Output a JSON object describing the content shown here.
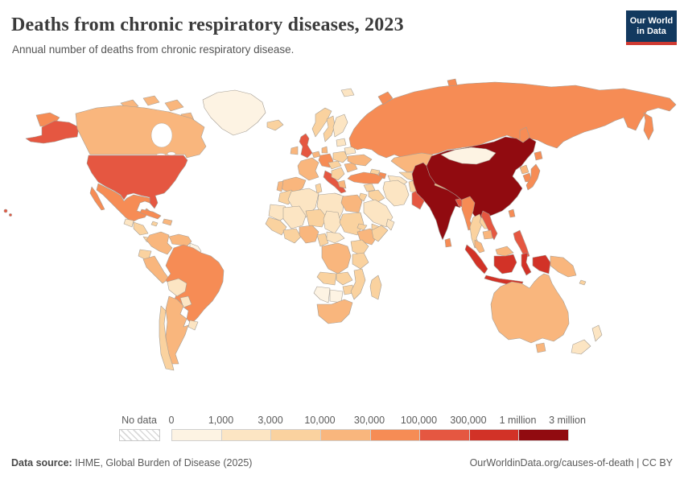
{
  "header": {
    "title": "Deaths from chronic respiratory diseases, 2023",
    "subtitle": "Annual number of deaths from chronic respiratory disease.",
    "logo_line1": "Our World",
    "logo_line2": "in Data"
  },
  "legend": {
    "no_data_label": "No data",
    "ticks": [
      "0",
      "1,000",
      "3,000",
      "10,000",
      "30,000",
      "100,000",
      "300,000",
      "1 million",
      "3 million"
    ]
  },
  "footer": {
    "source_label": "Data source:",
    "source_text": "IHME, Global Burden of Disease (2025)",
    "right_text": "OurWorldinData.org/causes-of-death | CC BY"
  },
  "chart_data": {
    "type": "choropleth_map",
    "title": "Deaths from chronic respiratory diseases, 2023",
    "unit": "deaths",
    "projection": "world",
    "legend_position": "bottom",
    "bin_edges": [
      "0",
      "1,000",
      "3,000",
      "10,000",
      "30,000",
      "100,000",
      "300,000",
      "1 million",
      "3 million"
    ],
    "colors": [
      "#fdf3e3",
      "#fce5c3",
      "#fad29f",
      "#f9b67d",
      "#f68c55",
      "#e55741",
      "#d23227",
      "#910b10"
    ],
    "no_data_fill": "hatched",
    "accent_colors": {
      "logo_navy": "#12395f",
      "logo_red": "#cf3a32",
      "border_gray": "#a59e95"
    },
    "regions": [
      {
        "name": "Greenland",
        "bin": 1
      },
      {
        "name": "Canada",
        "bin": 4
      },
      {
        "name": "United States",
        "bin": 6
      },
      {
        "name": "Mexico",
        "bin": 5
      },
      {
        "name": "Guatemala",
        "bin": 2
      },
      {
        "name": "Nicaragua",
        "bin": 3
      },
      {
        "name": "Panama",
        "bin": 3
      },
      {
        "name": "Cuba",
        "bin": 5
      },
      {
        "name": "Dominican Republic",
        "bin": 4
      },
      {
        "name": "Jamaica",
        "bin": 3
      },
      {
        "name": "Colombia",
        "bin": 4
      },
      {
        "name": "Venezuela",
        "bin": 4
      },
      {
        "name": "Guyana",
        "bin": 1
      },
      {
        "name": "Ecuador",
        "bin": 3
      },
      {
        "name": "Peru",
        "bin": 4
      },
      {
        "name": "Brazil",
        "bin": 5
      },
      {
        "name": "Bolivia",
        "bin": 2
      },
      {
        "name": "Paraguay",
        "bin": 2
      },
      {
        "name": "Uruguay",
        "bin": 2
      },
      {
        "name": "Argentina",
        "bin": 4
      },
      {
        "name": "Chile",
        "bin": 3
      },
      {
        "name": "Iceland",
        "bin": 3
      },
      {
        "name": "United Kingdom",
        "bin": 6
      },
      {
        "name": "Ireland",
        "bin": 4
      },
      {
        "name": "Norway",
        "bin": 3
      },
      {
        "name": "Sweden",
        "bin": 3
      },
      {
        "name": "Finland",
        "bin": 2
      },
      {
        "name": "Denmark",
        "bin": 4
      },
      {
        "name": "Germany",
        "bin": 5
      },
      {
        "name": "Netherlands",
        "bin": 4
      },
      {
        "name": "France",
        "bin": 4
      },
      {
        "name": "Spain",
        "bin": 4
      },
      {
        "name": "Portugal",
        "bin": 4
      },
      {
        "name": "Italy",
        "bin": 6
      },
      {
        "name": "Poland",
        "bin": 3
      },
      {
        "name": "Czechia",
        "bin": 3
      },
      {
        "name": "Serbia",
        "bin": 3
      },
      {
        "name": "Romania",
        "bin": 4
      },
      {
        "name": "Greece",
        "bin": 4
      },
      {
        "name": "Ukraine",
        "bin": 4
      },
      {
        "name": "Belarus",
        "bin": 2
      },
      {
        "name": "Lithuania",
        "bin": 2
      },
      {
        "name": "Russia",
        "bin": 5
      },
      {
        "name": "Kazakhstan",
        "bin": 4
      },
      {
        "name": "Uzbekistan",
        "bin": 3
      },
      {
        "name": "Turkmenistan",
        "bin": 2
      },
      {
        "name": "Georgia",
        "bin": 3
      },
      {
        "name": "Azerbaijan",
        "bin": 5
      },
      {
        "name": "Turkey",
        "bin": 5
      },
      {
        "name": "Syria",
        "bin": 3
      },
      {
        "name": "Iraq",
        "bin": 3
      },
      {
        "name": "Iran",
        "bin": 2
      },
      {
        "name": "Saudi Arabia",
        "bin": 2
      },
      {
        "name": "Yemen",
        "bin": 3
      },
      {
        "name": "Oman",
        "bin": 2
      },
      {
        "name": "Jordan",
        "bin": 3
      },
      {
        "name": "Afghanistan",
        "bin": 3
      },
      {
        "name": "Pakistan",
        "bin": 6
      },
      {
        "name": "India",
        "bin": 8
      },
      {
        "name": "Nepal",
        "bin": 4
      },
      {
        "name": "Bangladesh",
        "bin": 6
      },
      {
        "name": "Sri Lanka",
        "bin": 5
      },
      {
        "name": "Myanmar",
        "bin": 5
      },
      {
        "name": "Thailand",
        "bin": 3
      },
      {
        "name": "Laos",
        "bin": 3
      },
      {
        "name": "Vietnam",
        "bin": 6
      },
      {
        "name": "Cambodia",
        "bin": 4
      },
      {
        "name": "Malaysia",
        "bin": 4
      },
      {
        "name": "China",
        "bin": 8
      },
      {
        "name": "Mongolia",
        "bin": 1
      },
      {
        "name": "North Korea",
        "bin": 4
      },
      {
        "name": "South Korea",
        "bin": 5
      },
      {
        "name": "Japan",
        "bin": 5
      },
      {
        "name": "Taiwan",
        "bin": 5
      },
      {
        "name": "Philippines",
        "bin": 6
      },
      {
        "name": "Indonesia",
        "bin": 7
      },
      {
        "name": "Papua New Guinea",
        "bin": 4
      },
      {
        "name": "Australia",
        "bin": 4
      },
      {
        "name": "New Zealand",
        "bin": 2
      },
      {
        "name": "Solomon Islands",
        "bin": 3
      },
      {
        "name": "Morocco",
        "bin": 3
      },
      {
        "name": "Mauritania",
        "bin": 2
      },
      {
        "name": "Algeria",
        "bin": 2
      },
      {
        "name": "Tunisia",
        "bin": 3
      },
      {
        "name": "Libya",
        "bin": 2
      },
      {
        "name": "Egypt",
        "bin": 4
      },
      {
        "name": "Mali",
        "bin": 2
      },
      {
        "name": "Niger",
        "bin": 3
      },
      {
        "name": "Chad",
        "bin": 2
      },
      {
        "name": "Sudan",
        "bin": 3
      },
      {
        "name": "Eritrea",
        "bin": 3
      },
      {
        "name": "Ethiopia",
        "bin": 4
      },
      {
        "name": "Somalia",
        "bin": 3
      },
      {
        "name": "Senegal",
        "bin": 3
      },
      {
        "name": "Ghana",
        "bin": 3
      },
      {
        "name": "Nigeria",
        "bin": 4
      },
      {
        "name": "Cameroon",
        "bin": 3
      },
      {
        "name": "Central African Republic",
        "bin": 2
      },
      {
        "name": "Democratic Republic of Congo",
        "bin": 4
      },
      {
        "name": "Kenya",
        "bin": 3
      },
      {
        "name": "Tanzania",
        "bin": 3
      },
      {
        "name": "Angola",
        "bin": 3
      },
      {
        "name": "Zambia",
        "bin": 3
      },
      {
        "name": "Zimbabwe",
        "bin": 3
      },
      {
        "name": "Mozambique",
        "bin": 3
      },
      {
        "name": "Namibia",
        "bin": 1
      },
      {
        "name": "Botswana",
        "bin": 1
      },
      {
        "name": "South Africa",
        "bin": 4
      },
      {
        "name": "Madagascar",
        "bin": 3
      }
    ]
  }
}
